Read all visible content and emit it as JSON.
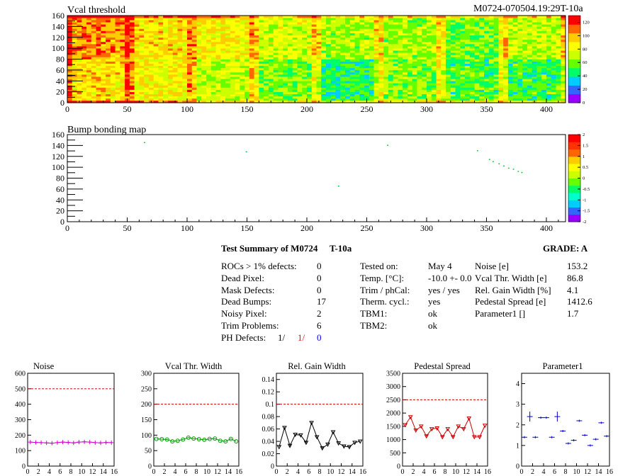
{
  "header": {
    "module_id": "M0724-070504.19:29T-10a"
  },
  "heatmap1": {
    "title": "Vcal threshold",
    "x_ticks": [
      "0",
      "50",
      "100",
      "150",
      "200",
      "250",
      "300",
      "350",
      "400"
    ],
    "y_ticks": [
      "0",
      "20",
      "40",
      "60",
      "80",
      "100",
      "120",
      "140",
      "160"
    ],
    "scale_ticks": [
      "0",
      "20",
      "40",
      "60",
      "80",
      "100",
      "120"
    ]
  },
  "heatmap2": {
    "title": "Bump bonding map",
    "x_ticks": [
      "0",
      "50",
      "100",
      "150",
      "200",
      "250",
      "300",
      "350",
      "400"
    ],
    "y_ticks": [
      "0",
      "20",
      "40",
      "60",
      "80",
      "100",
      "120",
      "140",
      "160"
    ],
    "scale_ticks": [
      "-2",
      "-1.5",
      "-1",
      "-0.5",
      "0",
      "0.5",
      "1",
      "1.5",
      "2"
    ]
  },
  "summary": {
    "title": "Test Summary of M0724",
    "test": "T-10a",
    "grade": "GRADE:  A",
    "defects": [
      {
        "label": "ROCs > 1% defects:",
        "value": "0"
      },
      {
        "label": "Dead Pixel:",
        "value": "0"
      },
      {
        "label": "Mask Defects:",
        "value": "0"
      },
      {
        "label": "Dead Bumps:",
        "value": "17"
      },
      {
        "label": "Noisy Pixel:",
        "value": "2"
      },
      {
        "label": "Trim Problems:",
        "value": "6"
      }
    ],
    "ph_label": "PH Defects:",
    "ph_values": [
      "1/",
      "1/",
      "0"
    ],
    "ph_colors": [
      "#000000",
      "#ff0000",
      "#0000ff"
    ],
    "conditions": [
      {
        "label": "Tested on:",
        "value": "May 4"
      },
      {
        "label": "Temp. [°C]:",
        "value": "-10.0 +- 0.0"
      },
      {
        "label": "Trim / phCal:",
        "value": "yes / yes"
      },
      {
        "label": "Therm. cycl.:",
        "value": "yes"
      },
      {
        "label": "TBM1:",
        "value": "ok"
      },
      {
        "label": "TBM2:",
        "value": "ok"
      }
    ],
    "params": [
      {
        "label": "Noise [e]",
        "value": "153.2"
      },
      {
        "label": "Vcal Thr. Width [e]",
        "value": "86.8"
      },
      {
        "label": "Rel. Gain Width [%]",
        "value": "4.1"
      },
      {
        "label": "Pedestal Spread [e]",
        "value": "1412.6"
      },
      {
        "label": "Parameter1 []",
        "value": "1.7"
      }
    ]
  },
  "chart_data": [
    {
      "type": "heatmap",
      "title": "Vcal threshold",
      "xlim": [
        0,
        416
      ],
      "ylim": [
        0,
        160
      ],
      "zlim": [
        0,
        130
      ],
      "roc_rows": [
        0,
        80,
        160
      ],
      "roc_cols": [
        0,
        52,
        104,
        156,
        208,
        260,
        312,
        364,
        416
      ],
      "roc_level_top": [
        92,
        85,
        72,
        60,
        48,
        62,
        55,
        52
      ],
      "roc_level_bottom": [
        105,
        90,
        85,
        75,
        68,
        68,
        60,
        72
      ],
      "colormap": [
        "#9900ff",
        "#3366ff",
        "#00ccff",
        "#00ff66",
        "#66ff00",
        "#ccff00",
        "#ffff00",
        "#ffcc00",
        "#ff6600",
        "#ff0000"
      ]
    },
    {
      "type": "heatmap",
      "title": "Bump bonding map",
      "xlim": [
        0,
        416
      ],
      "ylim": [
        0,
        160
      ],
      "zlim": [
        -2,
        2
      ],
      "points": [
        {
          "x": 64,
          "y": 145
        },
        {
          "x": 149,
          "y": 128
        },
        {
          "x": 226,
          "y": 65
        },
        {
          "x": 267,
          "y": 140
        },
        {
          "x": 342,
          "y": 130
        },
        {
          "x": 352,
          "y": 114
        },
        {
          "x": 355,
          "y": 110
        },
        {
          "x": 360,
          "y": 106
        },
        {
          "x": 364,
          "y": 102
        },
        {
          "x": 368,
          "y": 98
        },
        {
          "x": 372,
          "y": 96
        },
        {
          "x": 376,
          "y": 92
        },
        {
          "x": 379,
          "y": 90
        }
      ]
    },
    {
      "type": "line",
      "title": "Noise",
      "xlim": [
        0,
        16
      ],
      "ylim": [
        0,
        600
      ],
      "cut": 500,
      "color": "#cc00cc",
      "marker": "plus",
      "y_ticks": [
        "0",
        "100",
        "200",
        "300",
        "400",
        "500",
        "600"
      ],
      "x_ticks": [
        "0",
        "2",
        "4",
        "6",
        "8",
        "10",
        "12",
        "14",
        "16"
      ],
      "x": [
        0,
        1,
        2,
        3,
        4,
        5,
        6,
        7,
        8,
        9,
        10,
        11,
        12,
        13,
        14,
        15
      ],
      "values": [
        155,
        153,
        152,
        150,
        148,
        152,
        155,
        153,
        150,
        155,
        157,
        155,
        152,
        150,
        153,
        152
      ]
    },
    {
      "type": "line",
      "title": "Vcal Thr. Width",
      "xlim": [
        0,
        16
      ],
      "ylim": [
        0,
        300
      ],
      "cut": 200,
      "color": "#009900",
      "marker": "circle",
      "y_ticks": [
        "0",
        "50",
        "100",
        "150",
        "200",
        "250",
        "300"
      ],
      "x_ticks": [
        "0",
        "2",
        "4",
        "6",
        "8",
        "10",
        "12",
        "14",
        "16"
      ],
      "x": [
        0,
        1,
        2,
        3,
        4,
        5,
        6,
        7,
        8,
        9,
        10,
        11,
        12,
        13,
        14,
        15
      ],
      "values": [
        88,
        87,
        86,
        80,
        82,
        86,
        92,
        89,
        87,
        85,
        88,
        89,
        82,
        80,
        88,
        80
      ]
    },
    {
      "type": "line",
      "title": "Rel. Gain Width",
      "xlim": [
        0,
        16
      ],
      "ylim": [
        0,
        0.15
      ],
      "cut": 0.1,
      "color": "#000000",
      "marker": "triangle",
      "y_ticks": [
        "0",
        "0.02",
        "0.04",
        "0.06",
        "0.08",
        "0.1",
        "0.12",
        "0.14"
      ],
      "x_ticks": [
        "0",
        "2",
        "4",
        "6",
        "8",
        "10",
        "12",
        "14",
        "16"
      ],
      "x": [
        0,
        1,
        2,
        3,
        4,
        5,
        6,
        7,
        8,
        9,
        10,
        11,
        12,
        13,
        14,
        15
      ],
      "values": [
        0.031,
        0.062,
        0.033,
        0.051,
        0.05,
        0.038,
        0.07,
        0.047,
        0.029,
        0.035,
        0.055,
        0.037,
        0.032,
        0.031,
        0.038,
        0.04
      ]
    },
    {
      "type": "line",
      "title": "Pedestal Spread",
      "xlim": [
        0,
        16
      ],
      "ylim": [
        0,
        3500
      ],
      "cut": 2500,
      "color": "#cc0000",
      "marker": "triangle",
      "y_ticks": [
        "0",
        "500",
        "1000",
        "1500",
        "2000",
        "2500",
        "3000",
        "3500"
      ],
      "x_ticks": [
        "0",
        "2",
        "4",
        "6",
        "8",
        "10",
        "12",
        "14",
        "16"
      ],
      "x": [
        0,
        1,
        2,
        3,
        4,
        5,
        6,
        7,
        8,
        9,
        10,
        11,
        12,
        13,
        14,
        15
      ],
      "values": [
        1550,
        1850,
        1350,
        1500,
        1130,
        1400,
        1430,
        1100,
        1400,
        1100,
        1500,
        1400,
        1800,
        1100,
        1100,
        1530
      ]
    },
    {
      "type": "scatter",
      "title": "Parameter1",
      "xlim": [
        0,
        16
      ],
      "ylim": [
        0,
        4.5
      ],
      "color": "#0000cc",
      "marker": "errorbar",
      "y_ticks": [
        "0",
        "1",
        "2",
        "3",
        "4"
      ],
      "x_ticks": [
        "0",
        "2",
        "4",
        "6",
        "8",
        "10",
        "12",
        "14",
        "16"
      ],
      "x": [
        0,
        1,
        2,
        3,
        4,
        5,
        6,
        7,
        8,
        9,
        10,
        11,
        12,
        13,
        14,
        15
      ],
      "values": [
        1.4,
        2.4,
        1.4,
        2.35,
        2.35,
        1.4,
        2.4,
        1.7,
        1.1,
        1.25,
        2.2,
        1.5,
        1.0,
        1.3,
        2.1,
        1.45
      ]
    }
  ]
}
